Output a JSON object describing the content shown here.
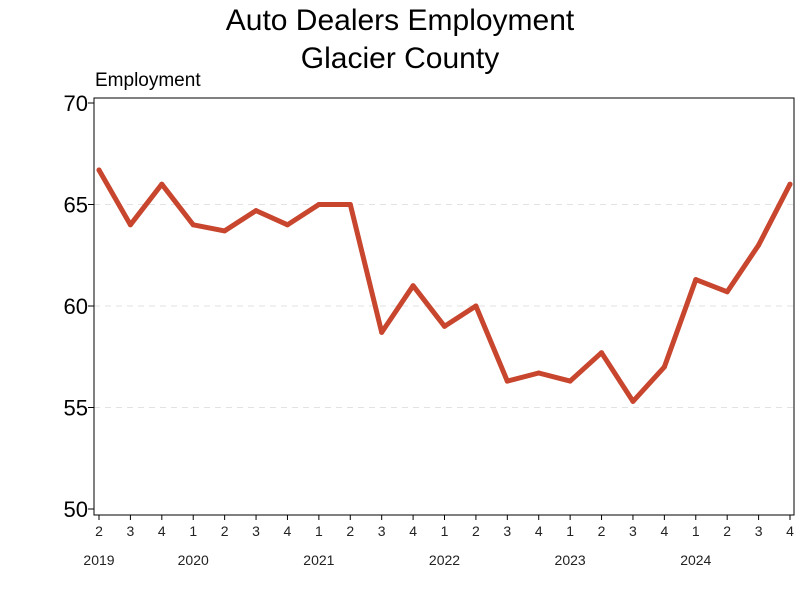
{
  "chart_data": {
    "type": "line",
    "title": "Auto Dealers Employment",
    "subtitle": "Glacier County",
    "ylabel": "Employment",
    "xlabel": "",
    "ylim": [
      50,
      70
    ],
    "yticks": [
      50,
      55,
      60,
      65,
      70
    ],
    "grid": "horizontal-dashed",
    "line_color": "#c8452e",
    "categories": [
      "2019 Q2",
      "2019 Q3",
      "2019 Q4",
      "2020 Q1",
      "2020 Q2",
      "2020 Q3",
      "2020 Q4",
      "2021 Q1",
      "2021 Q2",
      "2021 Q3",
      "2021 Q4",
      "2022 Q1",
      "2022 Q2",
      "2022 Q3",
      "2022 Q4",
      "2023 Q1",
      "2023 Q2",
      "2023 Q3",
      "2023 Q4",
      "2024 Q1",
      "2024 Q2",
      "2024 Q3",
      "2024 Q4"
    ],
    "quarter_labels": [
      "2",
      "3",
      "4",
      "1",
      "2",
      "3",
      "4",
      "1",
      "2",
      "3",
      "4",
      "1",
      "2",
      "3",
      "4",
      "1",
      "2",
      "3",
      "4",
      "1",
      "2",
      "3",
      "4"
    ],
    "year_labels": [
      {
        "label": "2019",
        "at_index": 0
      },
      {
        "label": "2020",
        "at_index": 3
      },
      {
        "label": "2021",
        "at_index": 7
      },
      {
        "label": "2022",
        "at_index": 11
      },
      {
        "label": "2023",
        "at_index": 15
      },
      {
        "label": "2024",
        "at_index": 19
      }
    ],
    "values": [
      66.7,
      64.0,
      66.0,
      64.0,
      63.7,
      64.7,
      64.0,
      65.0,
      65.0,
      58.7,
      61.0,
      59.0,
      60.0,
      56.3,
      56.7,
      56.3,
      57.7,
      55.3,
      57.0,
      61.3,
      60.7,
      63.0,
      66.0
    ]
  }
}
